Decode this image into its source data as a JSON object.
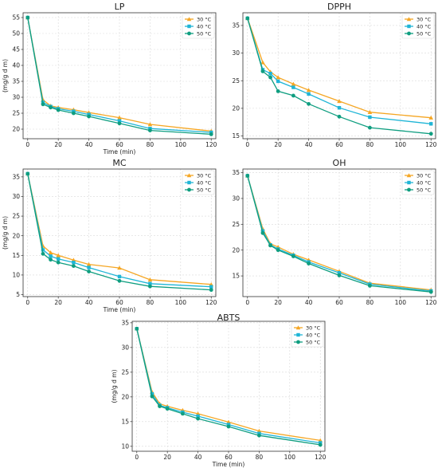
{
  "colors": {
    "30": "#f5a623",
    "40": "#1fb5d6",
    "50": "#0f9e80"
  },
  "chart_data": [
    {
      "type": "line",
      "title": "LP",
      "xlabel": "Time (min)",
      "ylabel": "(mg/g d m)",
      "x": [
        0,
        10,
        15,
        20,
        30,
        40,
        60,
        80,
        120
      ],
      "xlim": [
        -3,
        123
      ],
      "xticks": [
        0,
        20,
        40,
        60,
        80,
        100,
        120
      ],
      "ylim": [
        17,
        56.5
      ],
      "yticks": [
        20,
        25,
        30,
        35,
        40,
        45,
        50,
        55
      ],
      "legend": "top-right",
      "grid": true,
      "series": [
        {
          "name": "30 °C",
          "marker": "triangle",
          "values": [
            55,
            29.2,
            27.3,
            26.8,
            26.1,
            25.2,
            23.6,
            21.5,
            19.4
          ]
        },
        {
          "name": "40 °C",
          "marker": "square",
          "values": [
            55,
            28.4,
            27.1,
            26.4,
            25.6,
            24.6,
            22.6,
            20.2,
            19.0
          ]
        },
        {
          "name": "50 °C",
          "marker": "circle",
          "values": [
            55,
            27.8,
            26.8,
            26.0,
            25.0,
            24.0,
            21.8,
            19.6,
            18.4
          ]
        }
      ]
    },
    {
      "type": "line",
      "title": "DPPH",
      "xlabel": "",
      "ylabel": "",
      "x": [
        0,
        10,
        15,
        20,
        30,
        40,
        60,
        80,
        120
      ],
      "xlim": [
        -3,
        123
      ],
      "xticks": [
        0,
        20,
        40,
        60,
        80,
        100,
        120
      ],
      "ylim": [
        14.5,
        37.3
      ],
      "yticks": [
        15,
        20,
        25,
        30,
        35
      ],
      "legend": "top-right",
      "grid": true,
      "series": [
        {
          "name": "30 °C",
          "marker": "triangle",
          "values": [
            36.3,
            28.3,
            26.6,
            25.6,
            24.4,
            23.3,
            21.3,
            19.3,
            18.3
          ]
        },
        {
          "name": "40 °C",
          "marker": "square",
          "values": [
            36.3,
            27.0,
            26.3,
            24.9,
            23.8,
            22.6,
            20.1,
            18.4,
            17.2
          ]
        },
        {
          "name": "50 °C",
          "marker": "circle",
          "values": [
            36.3,
            26.7,
            25.6,
            23.1,
            22.3,
            20.8,
            18.5,
            16.5,
            15.4
          ]
        }
      ]
    },
    {
      "type": "line",
      "title": "MC",
      "xlabel": "Time (min)",
      "ylabel": "(mg/g d m)",
      "x": [
        0,
        10,
        15,
        20,
        30,
        40,
        60,
        80,
        120
      ],
      "xlim": [
        -3,
        123
      ],
      "xticks": [
        0,
        20,
        40,
        60,
        80,
        100,
        120
      ],
      "ylim": [
        4.5,
        37
      ],
      "yticks": [
        5,
        10,
        15,
        20,
        25,
        30,
        35
      ],
      "legend": "top-right",
      "grid": true,
      "series": [
        {
          "name": "30 °C",
          "marker": "triangle",
          "values": [
            35.8,
            17.4,
            15.7,
            15.0,
            13.8,
            12.7,
            11.8,
            8.8,
            7.6
          ]
        },
        {
          "name": "40 °C",
          "marker": "square",
          "values": [
            35.8,
            16.4,
            14.8,
            14.1,
            13.2,
            11.9,
            9.6,
            7.8,
            7.0
          ]
        },
        {
          "name": "50 °C",
          "marker": "circle",
          "values": [
            35.8,
            15.4,
            13.9,
            13.2,
            12.3,
            10.9,
            8.5,
            7.1,
            6.2
          ]
        }
      ]
    },
    {
      "type": "line",
      "title": "OH",
      "xlabel": "",
      "ylabel": "",
      "x": [
        0,
        10,
        15,
        20,
        30,
        40,
        60,
        80,
        120
      ],
      "xlim": [
        -3,
        123
      ],
      "xticks": [
        0,
        20,
        40,
        60,
        80,
        100,
        120
      ],
      "ylim": [
        11,
        35.7
      ],
      "yticks": [
        15,
        20,
        25,
        30,
        35
      ],
      "legend": "top-right",
      "grid": true,
      "series": [
        {
          "name": "30 °C",
          "marker": "triangle",
          "values": [
            34.4,
            24.1,
            21.2,
            20.6,
            19.2,
            18.1,
            15.9,
            13.6,
            12.3
          ]
        },
        {
          "name": "40 °C",
          "marker": "square",
          "values": [
            34.4,
            23.7,
            21.0,
            20.2,
            19.0,
            17.7,
            15.6,
            13.4,
            12.1
          ]
        },
        {
          "name": "50 °C",
          "marker": "circle",
          "values": [
            34.4,
            23.3,
            20.9,
            20.0,
            18.8,
            17.4,
            15.1,
            13.1,
            11.9
          ]
        }
      ]
    },
    {
      "type": "line",
      "title": "ABTS",
      "xlabel": "Time (min)",
      "ylabel": "(mg/g d m)",
      "x": [
        0,
        10,
        15,
        20,
        30,
        40,
        60,
        80,
        120
      ],
      "xlim": [
        -3,
        123
      ],
      "xticks": [
        0,
        20,
        40,
        60,
        80,
        100,
        120
      ],
      "ylim": [
        9,
        35.3
      ],
      "yticks": [
        10,
        15,
        20,
        25,
        30,
        35
      ],
      "legend": "top-right",
      "grid": true,
      "series": [
        {
          "name": "30 °C",
          "marker": "triangle",
          "values": [
            33.8,
            21.0,
            18.6,
            18.1,
            17.3,
            16.6,
            14.9,
            13.1,
            11.2
          ]
        },
        {
          "name": "40 °C",
          "marker": "square",
          "values": [
            33.8,
            20.6,
            18.3,
            17.8,
            16.9,
            16.1,
            14.4,
            12.6,
            10.7
          ]
        },
        {
          "name": "50 °C",
          "marker": "circle",
          "values": [
            33.8,
            20.1,
            18.1,
            17.6,
            16.6,
            15.6,
            14.0,
            12.2,
            10.3
          ]
        }
      ]
    }
  ]
}
